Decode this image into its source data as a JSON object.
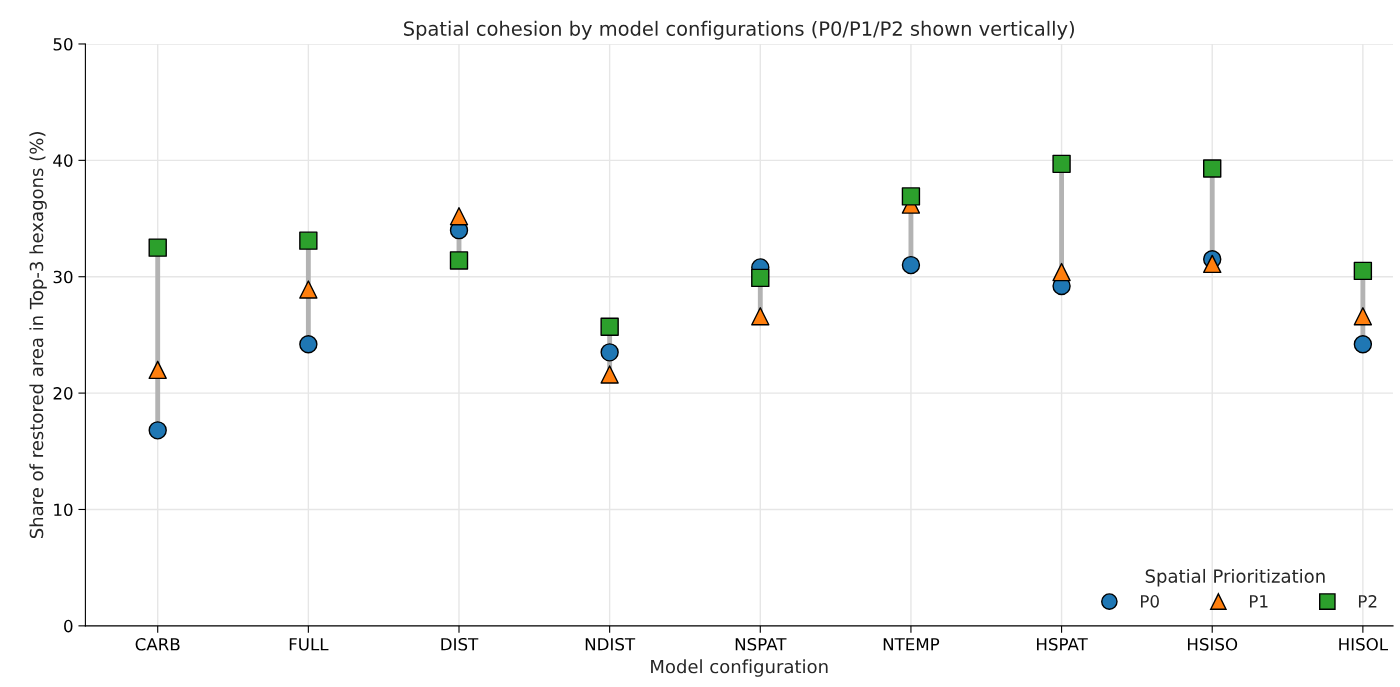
{
  "chart_data": {
    "type": "scatter",
    "title": "Spatial cohesion by model configurations (P0/P1/P2 shown vertically)",
    "xlabel": "Model configuration",
    "ylabel": "Share of restored area in Top-3 hexagons (%)",
    "legend_title": "Spatial Prioritization",
    "categories": [
      "CARB",
      "FULL",
      "DIST",
      "NDIST",
      "NSPAT",
      "NTEMP",
      "HSPAT",
      "HSISO",
      "HISOL"
    ],
    "series": [
      {
        "name": "P0",
        "color": "#1f77b4",
        "marker": "circle",
        "values": [
          16.8,
          24.2,
          34.0,
          23.5,
          30.8,
          31.0,
          29.2,
          31.5,
          24.2
        ]
      },
      {
        "name": "P1",
        "color": "#ff7f0e",
        "marker": "triangle",
        "values": [
          22.0,
          28.9,
          35.2,
          21.6,
          26.6,
          36.2,
          30.4,
          31.1,
          26.6
        ]
      },
      {
        "name": "P2",
        "color": "#2ca02c",
        "marker": "square",
        "values": [
          32.5,
          33.1,
          31.4,
          25.7,
          29.9,
          36.9,
          39.7,
          39.3,
          30.5
        ]
      }
    ],
    "ylim": [
      0,
      50
    ],
    "yticks": [
      0,
      10,
      20,
      30,
      40,
      50
    ],
    "grid": true,
    "legend": "bottom right"
  }
}
